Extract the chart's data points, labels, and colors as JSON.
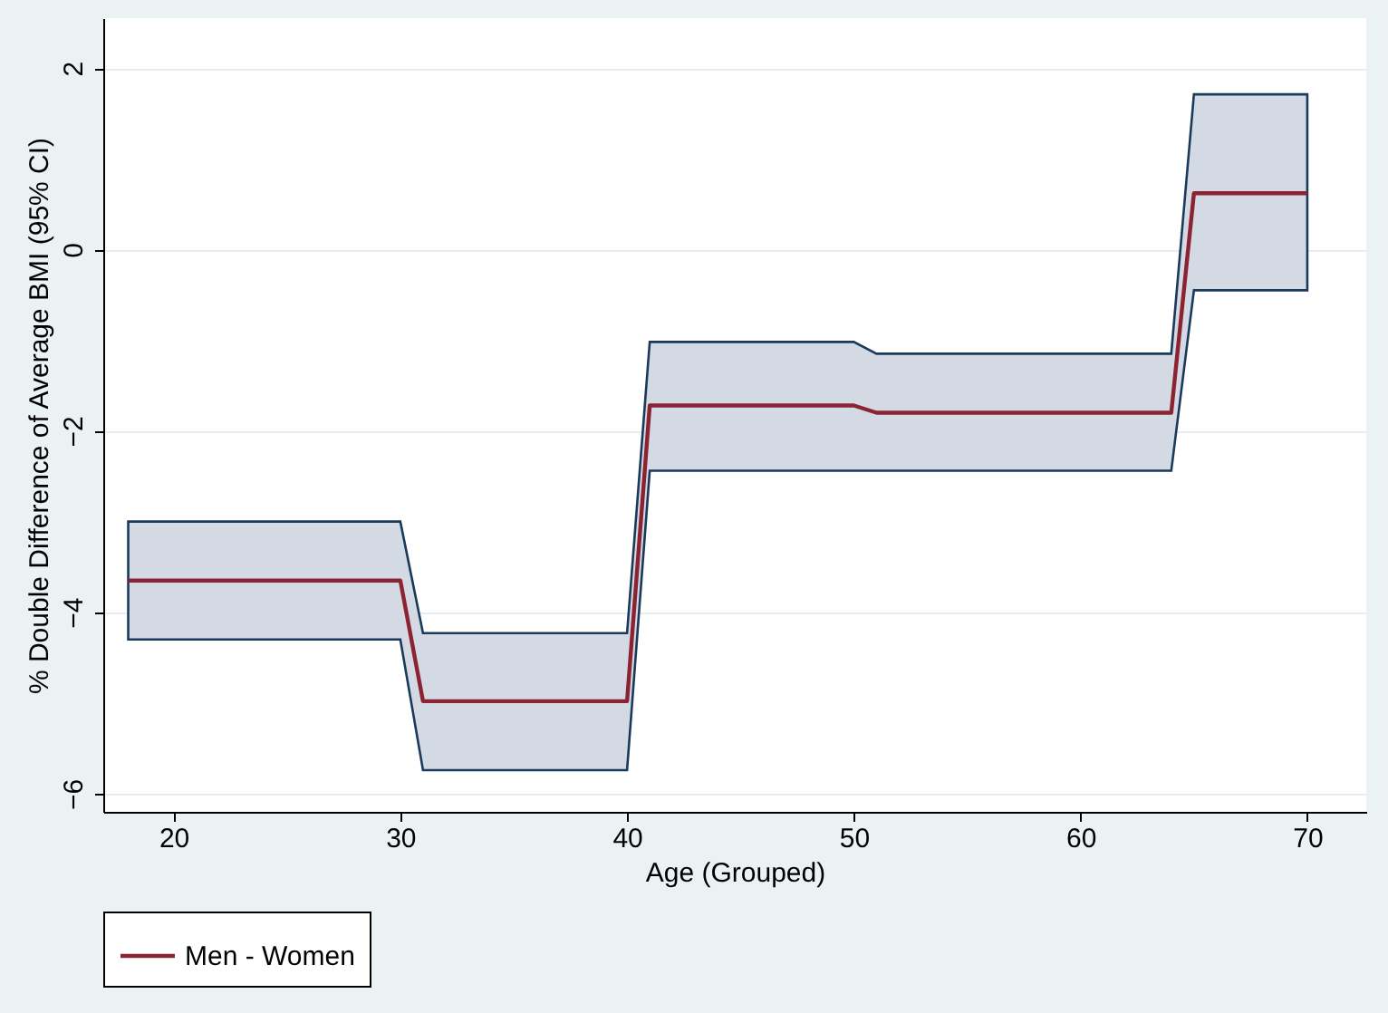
{
  "chart_data": {
    "type": "line",
    "xlabel": "Age (Grouped)",
    "ylabel": "% Double Difference of Average BMI (95% CI)",
    "x": [
      18,
      30,
      31,
      40,
      41,
      50,
      51,
      64,
      65,
      70
    ],
    "series": [
      {
        "name": "Men - Women",
        "color": "#8c2332",
        "values": [
          -3.65,
          -3.65,
          -4.98,
          -4.98,
          -1.72,
          -1.72,
          -1.8,
          -1.8,
          0.62,
          0.62
        ],
        "lower": [
          -4.3,
          -4.3,
          -5.74,
          -5.74,
          -2.44,
          -2.44,
          -2.44,
          -2.44,
          -0.45,
          -0.45
        ],
        "upper": [
          -3.0,
          -3.0,
          -4.23,
          -4.23,
          -1.02,
          -1.02,
          -1.15,
          -1.15,
          1.71,
          1.71
        ]
      }
    ],
    "xlim": [
      16.9,
      72.6
    ],
    "xticks": [
      20,
      30,
      40,
      50,
      60,
      70
    ],
    "ylim": [
      -6.2,
      2.55
    ],
    "yticks": [
      -6,
      -4,
      -2,
      0,
      2
    ],
    "grid": "y",
    "legend": "bottom",
    "marker": "none",
    "line_style": "solid"
  }
}
